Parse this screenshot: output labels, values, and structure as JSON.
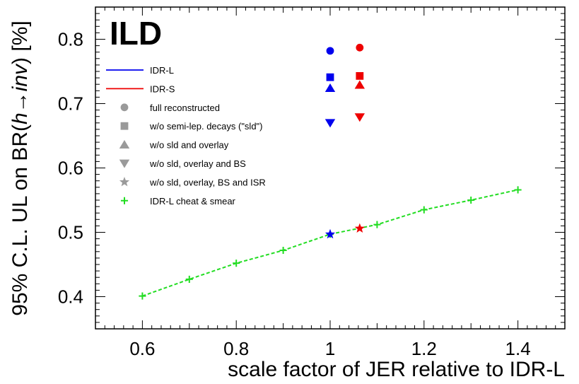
{
  "chart_data": {
    "type": "scatter",
    "brand_label": "ILD",
    "xlabel": "scale factor of JER relative to IDR-L",
    "ylabel_prefix": "95% C.L. UL on BR(",
    "ylabel_h": "h",
    "ylabel_arrow": "→",
    "ylabel_inv": "inv",
    "ylabel_suffix": ") [%]",
    "xlim": [
      0.5,
      1.5
    ],
    "ylim": [
      0.35,
      0.85
    ],
    "x_ticks": [
      0.6,
      0.8,
      1.0,
      1.2,
      1.4
    ],
    "x_tick_labels": [
      "0.6",
      "0.8",
      "1",
      "1.2",
      "1.4"
    ],
    "y_ticks": [
      0.4,
      0.5,
      0.6,
      0.7,
      0.8
    ],
    "y_tick_labels": [
      "0.4",
      "0.5",
      "0.6",
      "0.7",
      "0.8"
    ],
    "grid": false,
    "legend_position": "top-left",
    "colors": {
      "idr_l": "#0000ee",
      "idr_s": "#ee0000",
      "smear": "#22dd22",
      "legend_marker": "#9a9a9a"
    },
    "legend": [
      {
        "label": "IDR-L",
        "kind": "line",
        "color": "#0000ee"
      },
      {
        "label": "IDR-S",
        "kind": "line",
        "color": "#ee0000"
      },
      {
        "label": "full reconstructed",
        "kind": "circle"
      },
      {
        "label": "w/o semi-lep. decays (\"sld\")",
        "kind": "square"
      },
      {
        "label": "w/o sld and overlay",
        "kind": "triangle-up"
      },
      {
        "label": "w/o sld, overlay and BS",
        "kind": "triangle-down"
      },
      {
        "label": "w/o sld, overlay, BS and ISR",
        "kind": "star"
      },
      {
        "label": "IDR-L cheat & smear",
        "kind": "cross",
        "color": "#22dd22"
      }
    ],
    "series": [
      {
        "name": "IDR-L",
        "color": "#0000ee",
        "points": [
          {
            "x": 1.0,
            "y": 0.782,
            "marker": "circle"
          },
          {
            "x": 1.0,
            "y": 0.741,
            "marker": "square"
          },
          {
            "x": 1.0,
            "y": 0.724,
            "marker": "triangle-up"
          },
          {
            "x": 1.0,
            "y": 0.67,
            "marker": "triangle-down"
          },
          {
            "x": 1.0,
            "y": 0.497,
            "marker": "star"
          }
        ]
      },
      {
        "name": "IDR-S",
        "color": "#ee0000",
        "points": [
          {
            "x": 1.063,
            "y": 0.787,
            "marker": "circle"
          },
          {
            "x": 1.063,
            "y": 0.743,
            "marker": "square"
          },
          {
            "x": 1.063,
            "y": 0.729,
            "marker": "triangle-up"
          },
          {
            "x": 1.063,
            "y": 0.679,
            "marker": "triangle-down"
          },
          {
            "x": 1.063,
            "y": 0.506,
            "marker": "star"
          }
        ]
      },
      {
        "name": "IDR-L cheat & smear",
        "color": "#22dd22",
        "marker": "cross",
        "line": "dashed",
        "x": [
          0.6,
          0.7,
          0.8,
          0.9,
          1.0,
          1.1,
          1.2,
          1.3,
          1.4
        ],
        "y": [
          0.401,
          0.427,
          0.452,
          0.472,
          0.497,
          0.512,
          0.535,
          0.55,
          0.566
        ]
      }
    ]
  }
}
